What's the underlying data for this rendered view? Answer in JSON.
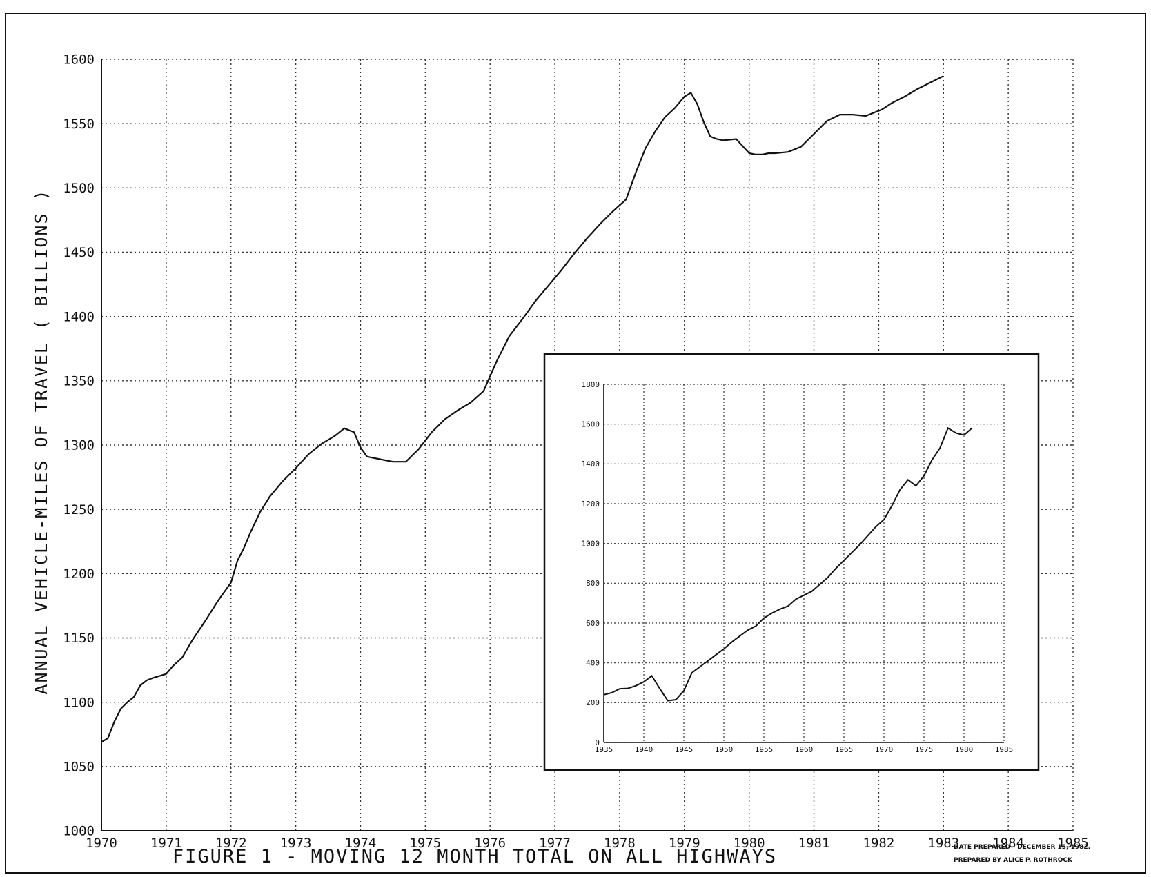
{
  "figure": {
    "caption": "FIGURE 1 - MOVING 12 MONTH TOTAL ON ALL HIGHWAYS",
    "note_line1": "DATE PREPARED - DECEMBER 15, 1982.",
    "note_line2": "PREPARED BY ALICE P. ROTHROCK",
    "colors": {
      "line": "#111111",
      "grid": "#333333",
      "background": "#ffffff"
    }
  },
  "chart_data": [
    {
      "type": "line",
      "title": "",
      "xlabel": "",
      "ylabel": "ANNUAL VEHICLE-MILES OF TRAVEL ( BILLIONS )",
      "xlim": [
        1970,
        1985
      ],
      "ylim": [
        1000,
        1600
      ],
      "grid": true,
      "x_ticks": [
        "1970",
        "1971",
        "1972",
        "1973",
        "1974",
        "1975",
        "1976",
        "1977",
        "1978",
        "1979",
        "1980",
        "1981",
        "1982",
        "1983",
        "1984",
        "1985"
      ],
      "y_ticks": [
        "1000",
        "1050",
        "1100",
        "1150",
        "1200",
        "1250",
        "1300",
        "1350",
        "1400",
        "1450",
        "1500",
        "1550",
        "1600"
      ],
      "series": [
        {
          "x": [
            1970.0,
            1970.1,
            1970.2,
            1970.3,
            1970.4,
            1970.5,
            1970.6,
            1970.7,
            1970.8,
            1971.0,
            1971.1,
            1971.25,
            1971.4,
            1971.6,
            1971.8,
            1972.0,
            1972.1,
            1972.2,
            1972.3,
            1972.45,
            1972.6,
            1972.8,
            1973.0,
            1973.2,
            1973.4,
            1973.6,
            1973.75,
            1973.9,
            1974.0,
            1974.1,
            1974.3,
            1974.5,
            1974.7,
            1974.9,
            1975.1,
            1975.3,
            1975.5,
            1975.7,
            1975.9,
            1976.1,
            1976.3,
            1976.5,
            1976.7,
            1976.9,
            1977.1,
            1977.3,
            1977.5,
            1977.7,
            1977.9,
            1978.1,
            1978.25,
            1978.4,
            1978.55,
            1978.7,
            1978.85,
            1979.0,
            1979.1,
            1979.2,
            1979.3,
            1979.4,
            1979.5,
            1979.6,
            1979.8,
            1980.0,
            1980.1,
            1980.2,
            1980.3,
            1980.4,
            1980.6,
            1980.8,
            1981.0,
            1981.2,
            1981.4,
            1981.6,
            1981.8,
            1981.95,
            1982.05,
            1982.2,
            1982.4,
            1982.6,
            1982.8,
            1983.0
          ],
          "y": [
            1069,
            1072,
            1085,
            1095,
            1100,
            1104,
            1113,
            1117,
            1119,
            1122,
            1128,
            1135,
            1148,
            1163,
            1179,
            1193,
            1210,
            1220,
            1232,
            1248,
            1260,
            1272,
            1282,
            1293,
            1301,
            1307,
            1313,
            1310,
            1298,
            1291,
            1289,
            1287,
            1287,
            1297,
            1310,
            1320,
            1327,
            1333,
            1342,
            1365,
            1385,
            1398,
            1412,
            1424,
            1436,
            1449,
            1461,
            1472,
            1482,
            1491,
            1512,
            1531,
            1544,
            1555,
            1562,
            1571,
            1574,
            1565,
            1551,
            1540,
            1538,
            1537,
            1538,
            1527,
            1526,
            1526,
            1527,
            1527,
            1528,
            1532,
            1542,
            1552,
            1557,
            1557,
            1556,
            1559,
            1561,
            1566,
            1571,
            1577,
            1582,
            1587
          ]
        }
      ]
    },
    {
      "type": "line",
      "title": "",
      "xlabel": "",
      "ylabel": "",
      "xlim": [
        1935,
        1985
      ],
      "ylim": [
        0,
        1800
      ],
      "grid": true,
      "x_ticks": [
        "1935",
        "1940",
        "1945",
        "1950",
        "1955",
        "1960",
        "1965",
        "1970",
        "1975",
        "1980",
        "1985"
      ],
      "y_ticks": [
        "0",
        "200",
        "400",
        "600",
        "800",
        "1000",
        "1200",
        "1400",
        "1600",
        "1800"
      ],
      "series": [
        {
          "x": [
            1935,
            1936,
            1937,
            1938,
            1939,
            1940,
            1941,
            1942,
            1943,
            1944,
            1945,
            1946,
            1947,
            1948,
            1949,
            1950,
            1951,
            1952,
            1953,
            1954,
            1955,
            1956,
            1957,
            1958,
            1959,
            1960,
            1961,
            1962,
            1963,
            1964,
            1965,
            1966,
            1967,
            1968,
            1969,
            1970,
            1971,
            1972,
            1973,
            1974,
            1975,
            1976,
            1977,
            1978,
            1979,
            1980,
            1981
          ],
          "y": [
            240,
            250,
            270,
            272,
            285,
            305,
            335,
            270,
            210,
            215,
            260,
            350,
            380,
            410,
            440,
            470,
            505,
            535,
            565,
            585,
            625,
            650,
            670,
            685,
            720,
            740,
            760,
            795,
            830,
            875,
            915,
            955,
            995,
            1040,
            1085,
            1120,
            1190,
            1270,
            1320,
            1290,
            1340,
            1420,
            1480,
            1580,
            1555,
            1545,
            1580
          ]
        }
      ]
    }
  ]
}
